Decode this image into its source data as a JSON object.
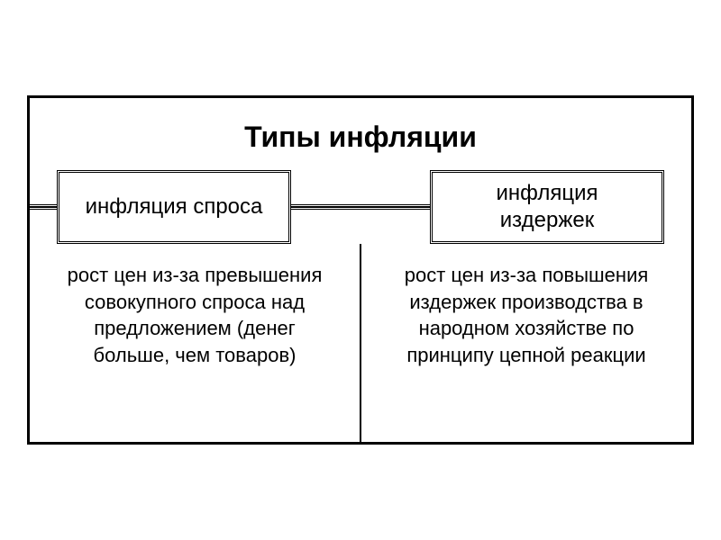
{
  "diagram": {
    "title": "Типы инфляции",
    "title_fontsize": 32,
    "title_fontweight": "bold",
    "border_color": "#000000",
    "background_color": "#ffffff",
    "text_color": "#000000",
    "outer_border_width": 3,
    "box_border_style": "double",
    "types": [
      {
        "label": "инфляция спроса",
        "description": "рост цен из-за превышения совокупного спроса над предложением (денег больше, чем товаров)"
      },
      {
        "label": "инфляция издержек",
        "description": "рост цен из-за повышения издержек производства в народном хозяйстве по принципу цепной реакции"
      }
    ],
    "label_fontsize": 24,
    "description_fontsize": 22
  }
}
